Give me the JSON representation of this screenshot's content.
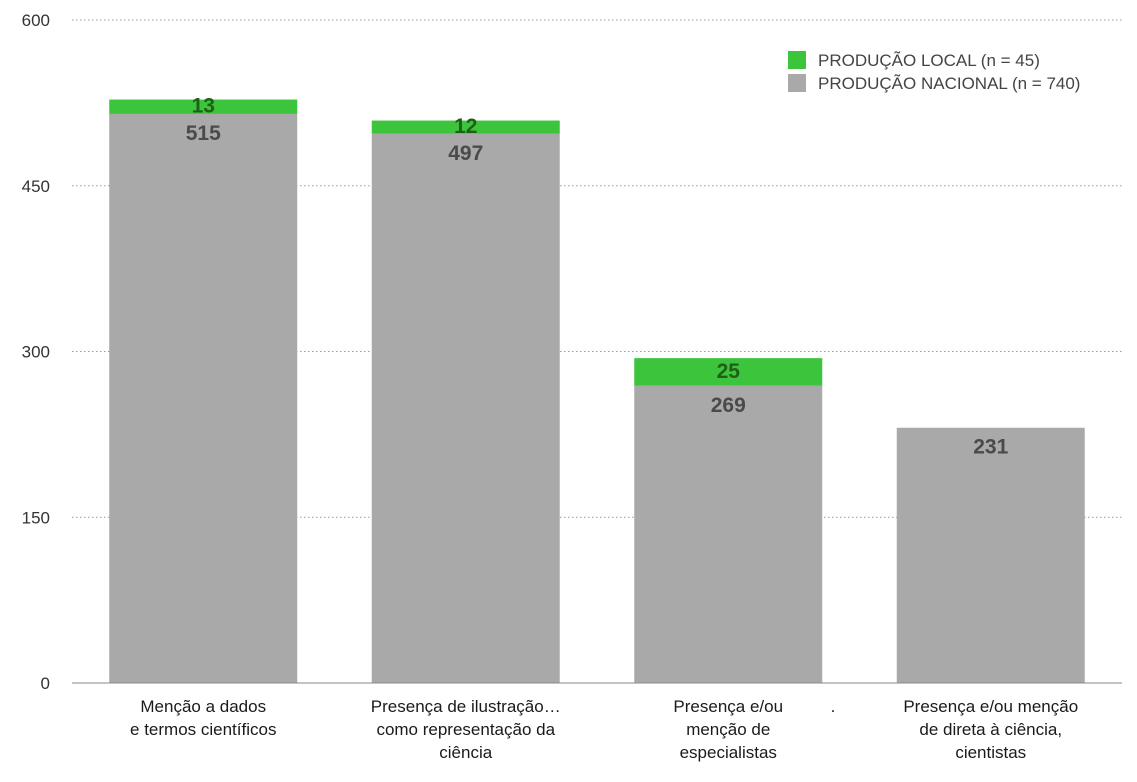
{
  "chart_data": {
    "type": "bar",
    "stacked": true,
    "categories": [
      [
        "Menção a dados",
        "e termos científicos"
      ],
      [
        "Presença de ilustração…",
        "como representação da",
        "ciência"
      ],
      [
        "Presença e/ou",
        "menção de",
        "especialistas"
      ],
      [
        "Presença e/ou menção",
        "de direta à ciência,",
        "cientistas"
      ]
    ],
    "series": [
      {
        "name": "PRODUÇÃO NACIONAL (n = 740)",
        "values": [
          515,
          497,
          269,
          231
        ],
        "color": "#a9a9a9",
        "label_color": "#4a4a4a"
      },
      {
        "name": "PRODUÇÃO LOCAL (n = 45)",
        "values": [
          13,
          12,
          25,
          null
        ],
        "color": "#3cc43c",
        "label_color": "#1f5f17"
      }
    ],
    "ylim": [
      0,
      600
    ],
    "yticks": [
      0,
      150,
      300,
      450,
      600
    ],
    "grid": true,
    "grid_style": "dotted",
    "legend_position": "top-right",
    "legend_order": [
      "PRODUÇÃO LOCAL (n = 45)",
      "PRODUÇÃO NACIONAL (n = 740)"
    ],
    "stray_mark": "."
  }
}
